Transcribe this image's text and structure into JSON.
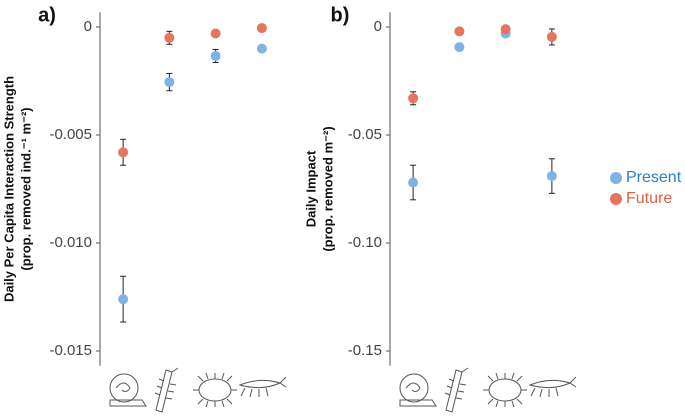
{
  "chart_data": [
    {
      "type": "errorpoint",
      "panel_label": "a)",
      "ylabel": "Daily Per Capita Interaction Strength",
      "ylabel2": "(prop. removed  ind.⁻¹  m⁻²)",
      "categories": [
        null,
        null,
        null,
        null
      ],
      "series": [
        {
          "name": "Present",
          "color": "#7fb3e6",
          "values": [
            -0.0126,
            -0.00255,
            -0.00134,
            -0.001
          ],
          "errors": [
            0.00106,
            0.0004,
            0.0003,
            0.0001
          ]
        },
        {
          "name": "Future",
          "color": "#e8735e",
          "values": [
            -0.0058,
            -0.0005,
            -0.0003,
            -5e-05
          ],
          "errors": [
            0.0006,
            0.0003,
            0.0001,
            0.0001
          ]
        }
      ],
      "ylim": [
        -0.0155,
        0.0005
      ],
      "yticks": [
        0,
        -0.005,
        {
          "value": -0.01,
          "label": "-0.010"
        },
        -0.015
      ]
    },
    {
      "type": "errorpoint",
      "panel_label": "b)",
      "ylabel": "Daily Impact",
      "ylabel2": "(prop. removed  m⁻²)",
      "categories": [
        null,
        null,
        null,
        null
      ],
      "series": [
        {
          "color": "#7fb3e6",
          "values": [
            -0.072,
            -0.0093,
            -0.003,
            -0.069
          ],
          "errors": [
            0.008,
            0.001,
            0.001,
            0.008
          ]
        },
        {
          "color": "#e8735e",
          "values": [
            -0.033,
            -0.002,
            -0.001,
            -0.0046
          ],
          "errors": [
            0.003,
            0.001,
            0.001,
            0.0037
          ]
        }
      ],
      "ylim": [
        -0.155,
        0.005
      ],
      "yticks": [
        0,
        -0.05,
        {
          "value": -0.1,
          "label": "-0.10"
        },
        -0.15
      ]
    }
  ],
  "legend_text_colors": [
    "#2b7cc6",
    "#e2603f"
  ]
}
